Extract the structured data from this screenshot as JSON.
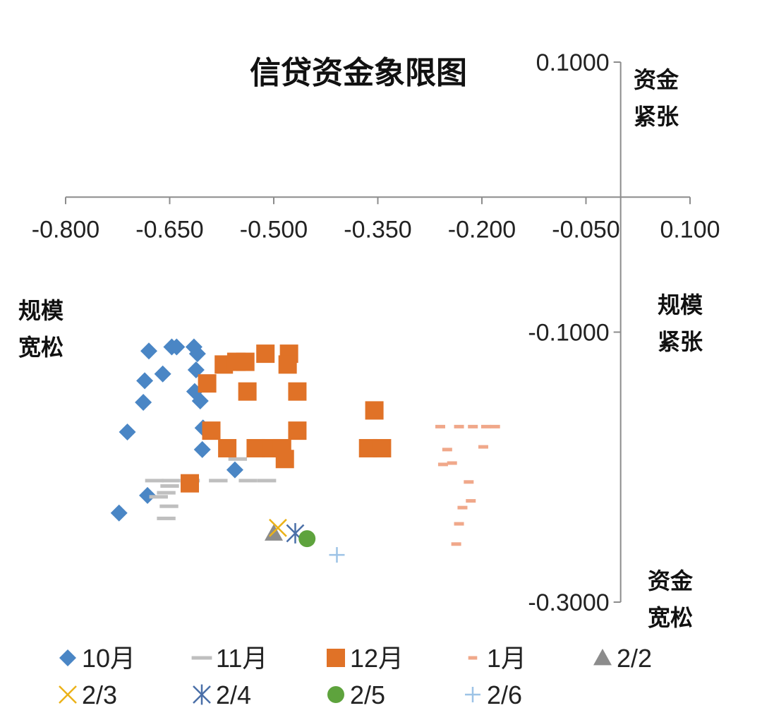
{
  "chart_data": {
    "type": "scatter",
    "title": "信贷资金象限图",
    "xlim": [
      -0.8,
      0.1
    ],
    "ylim": [
      -0.3,
      0.1
    ],
    "x_ticks": [
      "-0.800",
      "-0.650",
      "-0.500",
      "-0.350",
      "-0.200",
      "-0.050",
      "0.100"
    ],
    "y_ticks": [
      "0.1000",
      "-0.1000",
      "-0.3000"
    ],
    "quadrant_labels": {
      "top_right_1": "资金",
      "top_right_2": "紧张",
      "left_1": "规模",
      "left_2": "宽松",
      "right_1": "规模",
      "right_2": "紧张",
      "bottom_right_1": "资金",
      "bottom_right_2": "宽松"
    },
    "legend_position": "bottom",
    "series": [
      {
        "name": "10月",
        "marker": "diamond",
        "color": "#4a86c5",
        "points": [
          [
            -0.68,
            -0.114
          ],
          [
            -0.647,
            -0.111
          ],
          [
            -0.64,
            -0.111
          ],
          [
            -0.615,
            -0.111
          ],
          [
            -0.61,
            -0.116
          ],
          [
            -0.66,
            -0.131
          ],
          [
            -0.612,
            -0.128
          ],
          [
            -0.686,
            -0.136
          ],
          [
            -0.614,
            -0.144
          ],
          [
            -0.606,
            -0.151
          ],
          [
            -0.688,
            -0.152
          ],
          [
            -0.711,
            -0.174
          ],
          [
            -0.602,
            -0.171
          ],
          [
            -0.603,
            -0.187
          ],
          [
            -0.556,
            -0.202
          ],
          [
            -0.682,
            -0.221
          ],
          [
            -0.723,
            -0.234
          ]
        ]
      },
      {
        "name": "11月",
        "marker": "dash",
        "color": "#bfbfbf",
        "points": [
          [
            -0.552,
            -0.194
          ],
          [
            -0.672,
            -0.21
          ],
          [
            -0.648,
            -0.21
          ],
          [
            -0.62,
            -0.21
          ],
          [
            -0.58,
            -0.21
          ],
          [
            -0.537,
            -0.21
          ],
          [
            -0.51,
            -0.21
          ],
          [
            -0.65,
            -0.214
          ],
          [
            -0.655,
            -0.219
          ],
          [
            -0.666,
            -0.222
          ],
          [
            -0.651,
            -0.229
          ],
          [
            -0.655,
            -0.238
          ]
        ]
      },
      {
        "name": "12月",
        "marker": "square",
        "color": "#e07227",
        "points": [
          [
            -0.512,
            -0.116
          ],
          [
            -0.478,
            -0.116
          ],
          [
            -0.572,
            -0.124
          ],
          [
            -0.554,
            -0.122
          ],
          [
            -0.541,
            -0.122
          ],
          [
            -0.48,
            -0.124
          ],
          [
            -0.596,
            -0.138
          ],
          [
            -0.538,
            -0.144
          ],
          [
            -0.466,
            -0.144
          ],
          [
            -0.355,
            -0.158
          ],
          [
            -0.59,
            -0.173
          ],
          [
            -0.466,
            -0.173
          ],
          [
            -0.567,
            -0.186
          ],
          [
            -0.526,
            -0.186
          ],
          [
            -0.504,
            -0.186
          ],
          [
            -0.488,
            -0.186
          ],
          [
            -0.364,
            -0.186
          ],
          [
            -0.344,
            -0.186
          ],
          [
            -0.484,
            -0.194
          ],
          [
            -0.621,
            -0.212
          ]
        ]
      },
      {
        "name": "1月",
        "marker": "dash-small",
        "color": "#f0a88a",
        "points": [
          [
            -0.26,
            -0.17
          ],
          [
            -0.233,
            -0.17
          ],
          [
            -0.213,
            -0.17
          ],
          [
            -0.194,
            -0.17
          ],
          [
            -0.181,
            -0.17
          ],
          [
            -0.25,
            -0.187
          ],
          [
            -0.198,
            -0.185
          ],
          [
            -0.256,
            -0.198
          ],
          [
            -0.243,
            -0.197
          ],
          [
            -0.219,
            -0.211
          ],
          [
            -0.216,
            -0.225
          ],
          [
            -0.228,
            -0.23
          ],
          [
            -0.233,
            -0.242
          ],
          [
            -0.237,
            -0.257
          ]
        ]
      },
      {
        "name": "2/2",
        "marker": "triangle",
        "color": "#8c8c8c",
        "points": [
          [
            -0.5,
            -0.249
          ]
        ]
      },
      {
        "name": "2/3",
        "marker": "x",
        "color": "#ebb219",
        "points": [
          [
            -0.494,
            -0.245
          ]
        ]
      },
      {
        "name": "2/4",
        "marker": "asterisk",
        "color": "#4a6fa8",
        "points": [
          [
            -0.469,
            -0.249
          ]
        ]
      },
      {
        "name": "2/5",
        "marker": "circle",
        "color": "#5ea33d",
        "points": [
          [
            -0.452,
            -0.253
          ]
        ]
      },
      {
        "name": "2/6",
        "marker": "plus",
        "color": "#9dc3e6",
        "points": [
          [
            -0.409,
            -0.265
          ]
        ]
      }
    ]
  }
}
